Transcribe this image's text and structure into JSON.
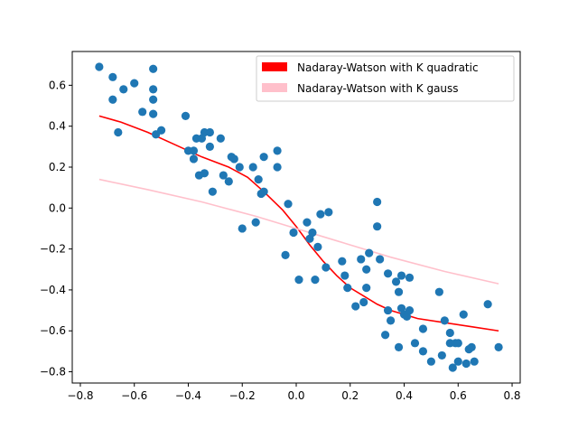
{
  "chart_data": {
    "type": "scatter",
    "title": "",
    "xlabel": "",
    "ylabel": "",
    "xlim": [
      -0.83,
      0.83
    ],
    "ylim": [
      -0.855,
      0.765
    ],
    "x_ticks": [
      -0.8,
      -0.6,
      -0.4,
      -0.2,
      0.0,
      0.2,
      0.4,
      0.6,
      0.8
    ],
    "x_tick_labels": [
      "−0.8",
      "−0.6",
      "−0.4",
      "−0.2",
      "0.0",
      "0.2",
      "0.4",
      "0.6",
      "0.8"
    ],
    "y_ticks": [
      -0.8,
      -0.6,
      -0.4,
      -0.2,
      0.0,
      0.2,
      0.4,
      0.6
    ],
    "y_tick_labels": [
      "−0.8",
      "−0.6",
      "−0.4",
      "−0.2",
      "0.0",
      "0.2",
      "0.4",
      "0.6"
    ],
    "grid": false,
    "legend_position": "top-right",
    "points": {
      "color": "#1f77b4",
      "x": [
        -0.73,
        -0.68,
        -0.68,
        -0.66,
        -0.64,
        -0.6,
        -0.57,
        -0.53,
        -0.53,
        -0.53,
        -0.53,
        -0.52,
        -0.5,
        -0.41,
        -0.4,
        -0.38,
        -0.38,
        -0.37,
        -0.36,
        -0.35,
        -0.34,
        -0.34,
        -0.32,
        -0.32,
        -0.31,
        -0.28,
        -0.27,
        -0.25,
        -0.24,
        -0.23,
        -0.21,
        -0.2,
        -0.16,
        -0.15,
        -0.14,
        -0.13,
        -0.12,
        -0.12,
        -0.07,
        -0.07,
        -0.04,
        -0.03,
        -0.01,
        0.01,
        0.04,
        0.05,
        0.06,
        0.07,
        0.08,
        0.09,
        0.11,
        0.12,
        0.17,
        0.18,
        0.19,
        0.22,
        0.24,
        0.25,
        0.26,
        0.26,
        0.27,
        0.3,
        0.3,
        0.31,
        0.33,
        0.34,
        0.34,
        0.35,
        0.37,
        0.38,
        0.38,
        0.39,
        0.39,
        0.4,
        0.41,
        0.42,
        0.42,
        0.44,
        0.47,
        0.47,
        0.5,
        0.53,
        0.54,
        0.55,
        0.57,
        0.57,
        0.58,
        0.59,
        0.6,
        0.6,
        0.62,
        0.63,
        0.64,
        0.65,
        0.66,
        0.71,
        0.75
      ],
      "y": [
        0.69,
        0.64,
        0.53,
        0.37,
        0.58,
        0.61,
        0.47,
        0.68,
        0.58,
        0.53,
        0.46,
        0.36,
        0.38,
        0.45,
        0.28,
        0.28,
        0.24,
        0.34,
        0.16,
        0.34,
        0.37,
        0.17,
        0.3,
        0.37,
        0.08,
        0.34,
        0.16,
        0.13,
        0.25,
        0.24,
        0.2,
        -0.1,
        0.2,
        -0.07,
        0.14,
        0.07,
        0.25,
        0.08,
        0.2,
        0.28,
        -0.23,
        0.02,
        -0.12,
        -0.35,
        -0.07,
        -0.15,
        -0.12,
        -0.35,
        -0.19,
        -0.03,
        -0.29,
        -0.02,
        -0.26,
        -0.33,
        -0.39,
        -0.48,
        -0.25,
        -0.46,
        -0.3,
        -0.39,
        -0.22,
        0.03,
        -0.09,
        -0.25,
        -0.62,
        -0.32,
        -0.5,
        -0.55,
        -0.36,
        -0.68,
        -0.41,
        -0.49,
        -0.33,
        -0.52,
        -0.53,
        -0.5,
        -0.34,
        -0.66,
        -0.7,
        -0.59,
        -0.75,
        -0.41,
        -0.72,
        -0.55,
        -0.61,
        -0.66,
        -0.78,
        -0.66,
        -0.66,
        -0.75,
        -0.52,
        -0.76,
        -0.69,
        -0.68,
        -0.75,
        -0.47,
        -0.68
      ]
    },
    "series": [
      {
        "name": "Nadaray-Watson with K quadratic",
        "color": "#ff0000",
        "x": [
          -0.73,
          -0.65,
          -0.55,
          -0.45,
          -0.35,
          -0.25,
          -0.18,
          -0.12,
          -0.05,
          0.0,
          0.05,
          0.1,
          0.15,
          0.2,
          0.25,
          0.3,
          0.35,
          0.45,
          0.55,
          0.65,
          0.75
        ],
        "y": [
          0.45,
          0.42,
          0.37,
          0.31,
          0.25,
          0.2,
          0.15,
          0.08,
          -0.01,
          -0.09,
          -0.18,
          -0.26,
          -0.33,
          -0.39,
          -0.43,
          -0.47,
          -0.5,
          -0.54,
          -0.56,
          -0.58,
          -0.6
        ]
      },
      {
        "name": "Nadaray-Watson with K gauss",
        "color": "#ffc0cb",
        "x": [
          -0.73,
          -0.55,
          -0.35,
          -0.15,
          0.0,
          0.15,
          0.35,
          0.55,
          0.75
        ],
        "y": [
          0.14,
          0.09,
          0.03,
          -0.04,
          -0.1,
          -0.16,
          -0.24,
          -0.31,
          -0.37
        ]
      }
    ]
  }
}
